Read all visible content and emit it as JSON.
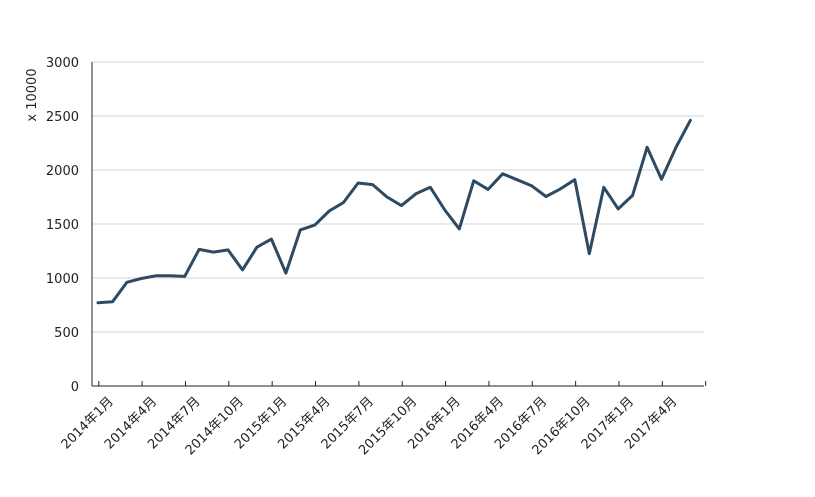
{
  "chart_data": {
    "type": "line",
    "ylabel": "x 10000",
    "ylim": [
      0,
      3000
    ],
    "yticks": [
      0,
      500,
      1000,
      1500,
      2000,
      2500,
      3000
    ],
    "grid": "horizontal",
    "line_color": "#2e4a63",
    "grid_color": "#d0d4da",
    "axis_color": "#222222",
    "x_tick_labels": [
      "2014年1月",
      "2014年4月",
      "2014年7月",
      "2014年10月",
      "2015年1月",
      "2015年4月",
      "2015年7月",
      "2015年10月",
      "2016年1月",
      "2016年4月",
      "2016年7月",
      "2016年10月",
      "2017年1月",
      "2017年4月"
    ],
    "x": [
      "2014-01",
      "2014-02",
      "2014-03",
      "2014-04",
      "2014-05",
      "2014-06",
      "2014-07",
      "2014-08",
      "2014-09",
      "2014-10",
      "2014-11",
      "2014-12",
      "2015-01",
      "2015-02",
      "2015-03",
      "2015-04",
      "2015-05",
      "2015-06",
      "2015-07",
      "2015-08",
      "2015-09",
      "2015-10",
      "2015-11",
      "2015-12",
      "2016-01",
      "2016-02",
      "2016-03",
      "2016-04",
      "2016-05",
      "2016-06",
      "2016-07",
      "2016-08",
      "2016-09",
      "2016-10",
      "2016-11",
      "2016-12",
      "2017-01",
      "2017-02",
      "2017-03",
      "2017-04",
      "2017-05",
      "2017-06"
    ],
    "series": [
      {
        "values": [
          770,
          780,
          960,
          995,
          1020,
          1020,
          1015,
          1265,
          1240,
          1260,
          1075,
          1285,
          1360,
          1045,
          1445,
          1490,
          1620,
          1700,
          1880,
          1865,
          1750,
          1670,
          1780,
          1840,
          1630,
          1455,
          1900,
          1820,
          1965,
          1910,
          1855,
          1755,
          1825,
          1910,
          1225,
          1840,
          1640,
          1765,
          2210,
          1915,
          2210,
          2460
        ]
      }
    ]
  }
}
